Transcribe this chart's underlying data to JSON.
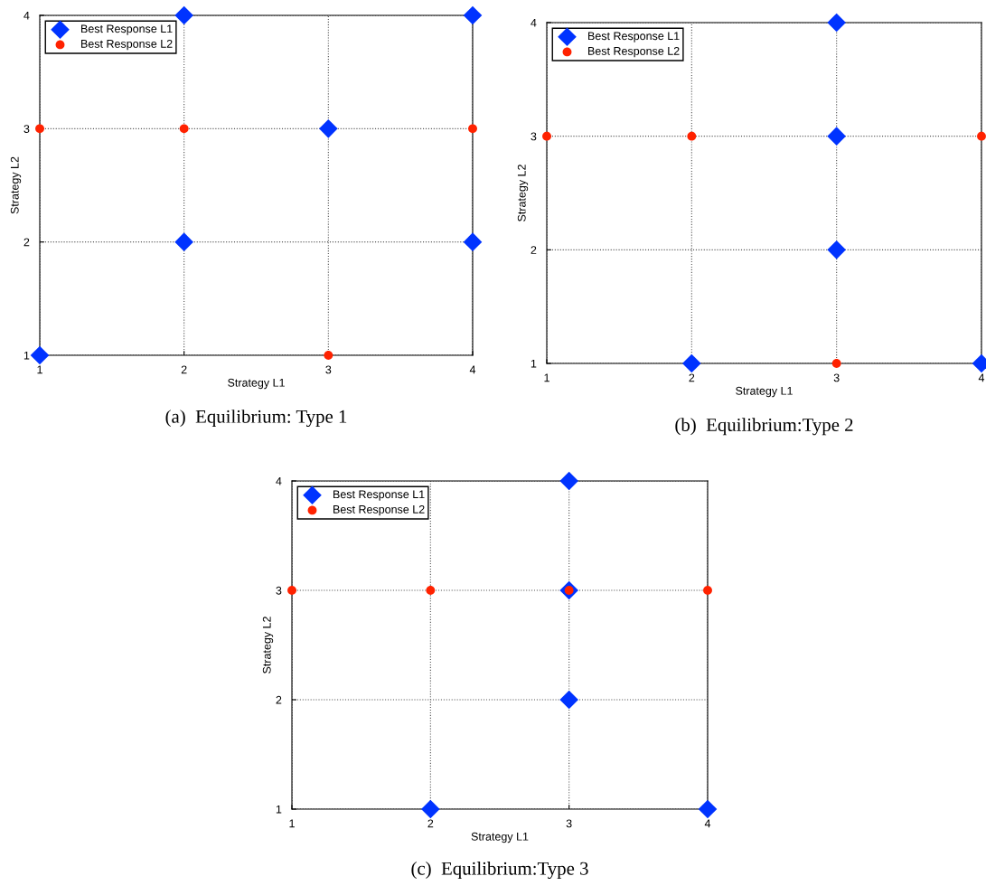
{
  "chart_data": [
    {
      "type": "scatter",
      "title": "(a)  Equilibrium: Type 1",
      "xlabel": "Strategy L1",
      "ylabel": "Strategy L2",
      "xlim": [
        1,
        4
      ],
      "ylim": [
        1,
        4
      ],
      "xticks": [
        1,
        2,
        3,
        4
      ],
      "yticks": [
        1,
        2,
        3,
        4
      ],
      "grid": true,
      "legend": "top left",
      "series": [
        {
          "name": "Best Response L1",
          "color": "#0033ff",
          "marker": "diamond",
          "x": [
            1,
            2,
            4,
            3,
            2,
            4
          ],
          "values": [
            1,
            4,
            4,
            3,
            2,
            2
          ]
        },
        {
          "name": "Best Response L2",
          "color": "#ff2200",
          "marker": "circle",
          "x": [
            1,
            2,
            4,
            3
          ],
          "values": [
            3,
            3,
            3,
            1
          ]
        }
      ]
    },
    {
      "type": "scatter",
      "title": "(b)  Equilibrium:Type 2",
      "xlabel": "Strategy L1",
      "ylabel": "Strategy L2",
      "xlim": [
        1,
        4
      ],
      "ylim": [
        1,
        4
      ],
      "xticks": [
        1,
        2,
        3,
        4
      ],
      "yticks": [
        1,
        2,
        3,
        4
      ],
      "grid": true,
      "legend": "top left",
      "series": [
        {
          "name": "Best Response L1",
          "color": "#0033ff",
          "marker": "diamond",
          "x": [
            3,
            3,
            3,
            2,
            4
          ],
          "values": [
            4,
            3,
            2,
            1,
            1
          ]
        },
        {
          "name": "Best Response L2",
          "color": "#ff2200",
          "marker": "circle",
          "x": [
            1,
            2,
            4,
            3
          ],
          "values": [
            3,
            3,
            3,
            1
          ]
        }
      ]
    },
    {
      "type": "scatter",
      "title": "(c)  Equilibrium:Type 3",
      "xlabel": "Strategy L1",
      "ylabel": "Strategy L2",
      "xlim": [
        1,
        4
      ],
      "ylim": [
        1,
        4
      ],
      "xticks": [
        1,
        2,
        3,
        4
      ],
      "yticks": [
        1,
        2,
        3,
        4
      ],
      "grid": true,
      "legend": "top left",
      "series": [
        {
          "name": "Best Response L1",
          "color": "#0033ff",
          "marker": "diamond",
          "x": [
            3,
            3,
            3,
            2,
            4
          ],
          "values": [
            4,
            3,
            2,
            1,
            1
          ]
        },
        {
          "name": "Best Response L2",
          "color": "#ff2200",
          "marker": "circle",
          "x": [
            1,
            2,
            3,
            4
          ],
          "values": [
            3,
            3,
            3,
            3
          ]
        }
      ]
    }
  ]
}
